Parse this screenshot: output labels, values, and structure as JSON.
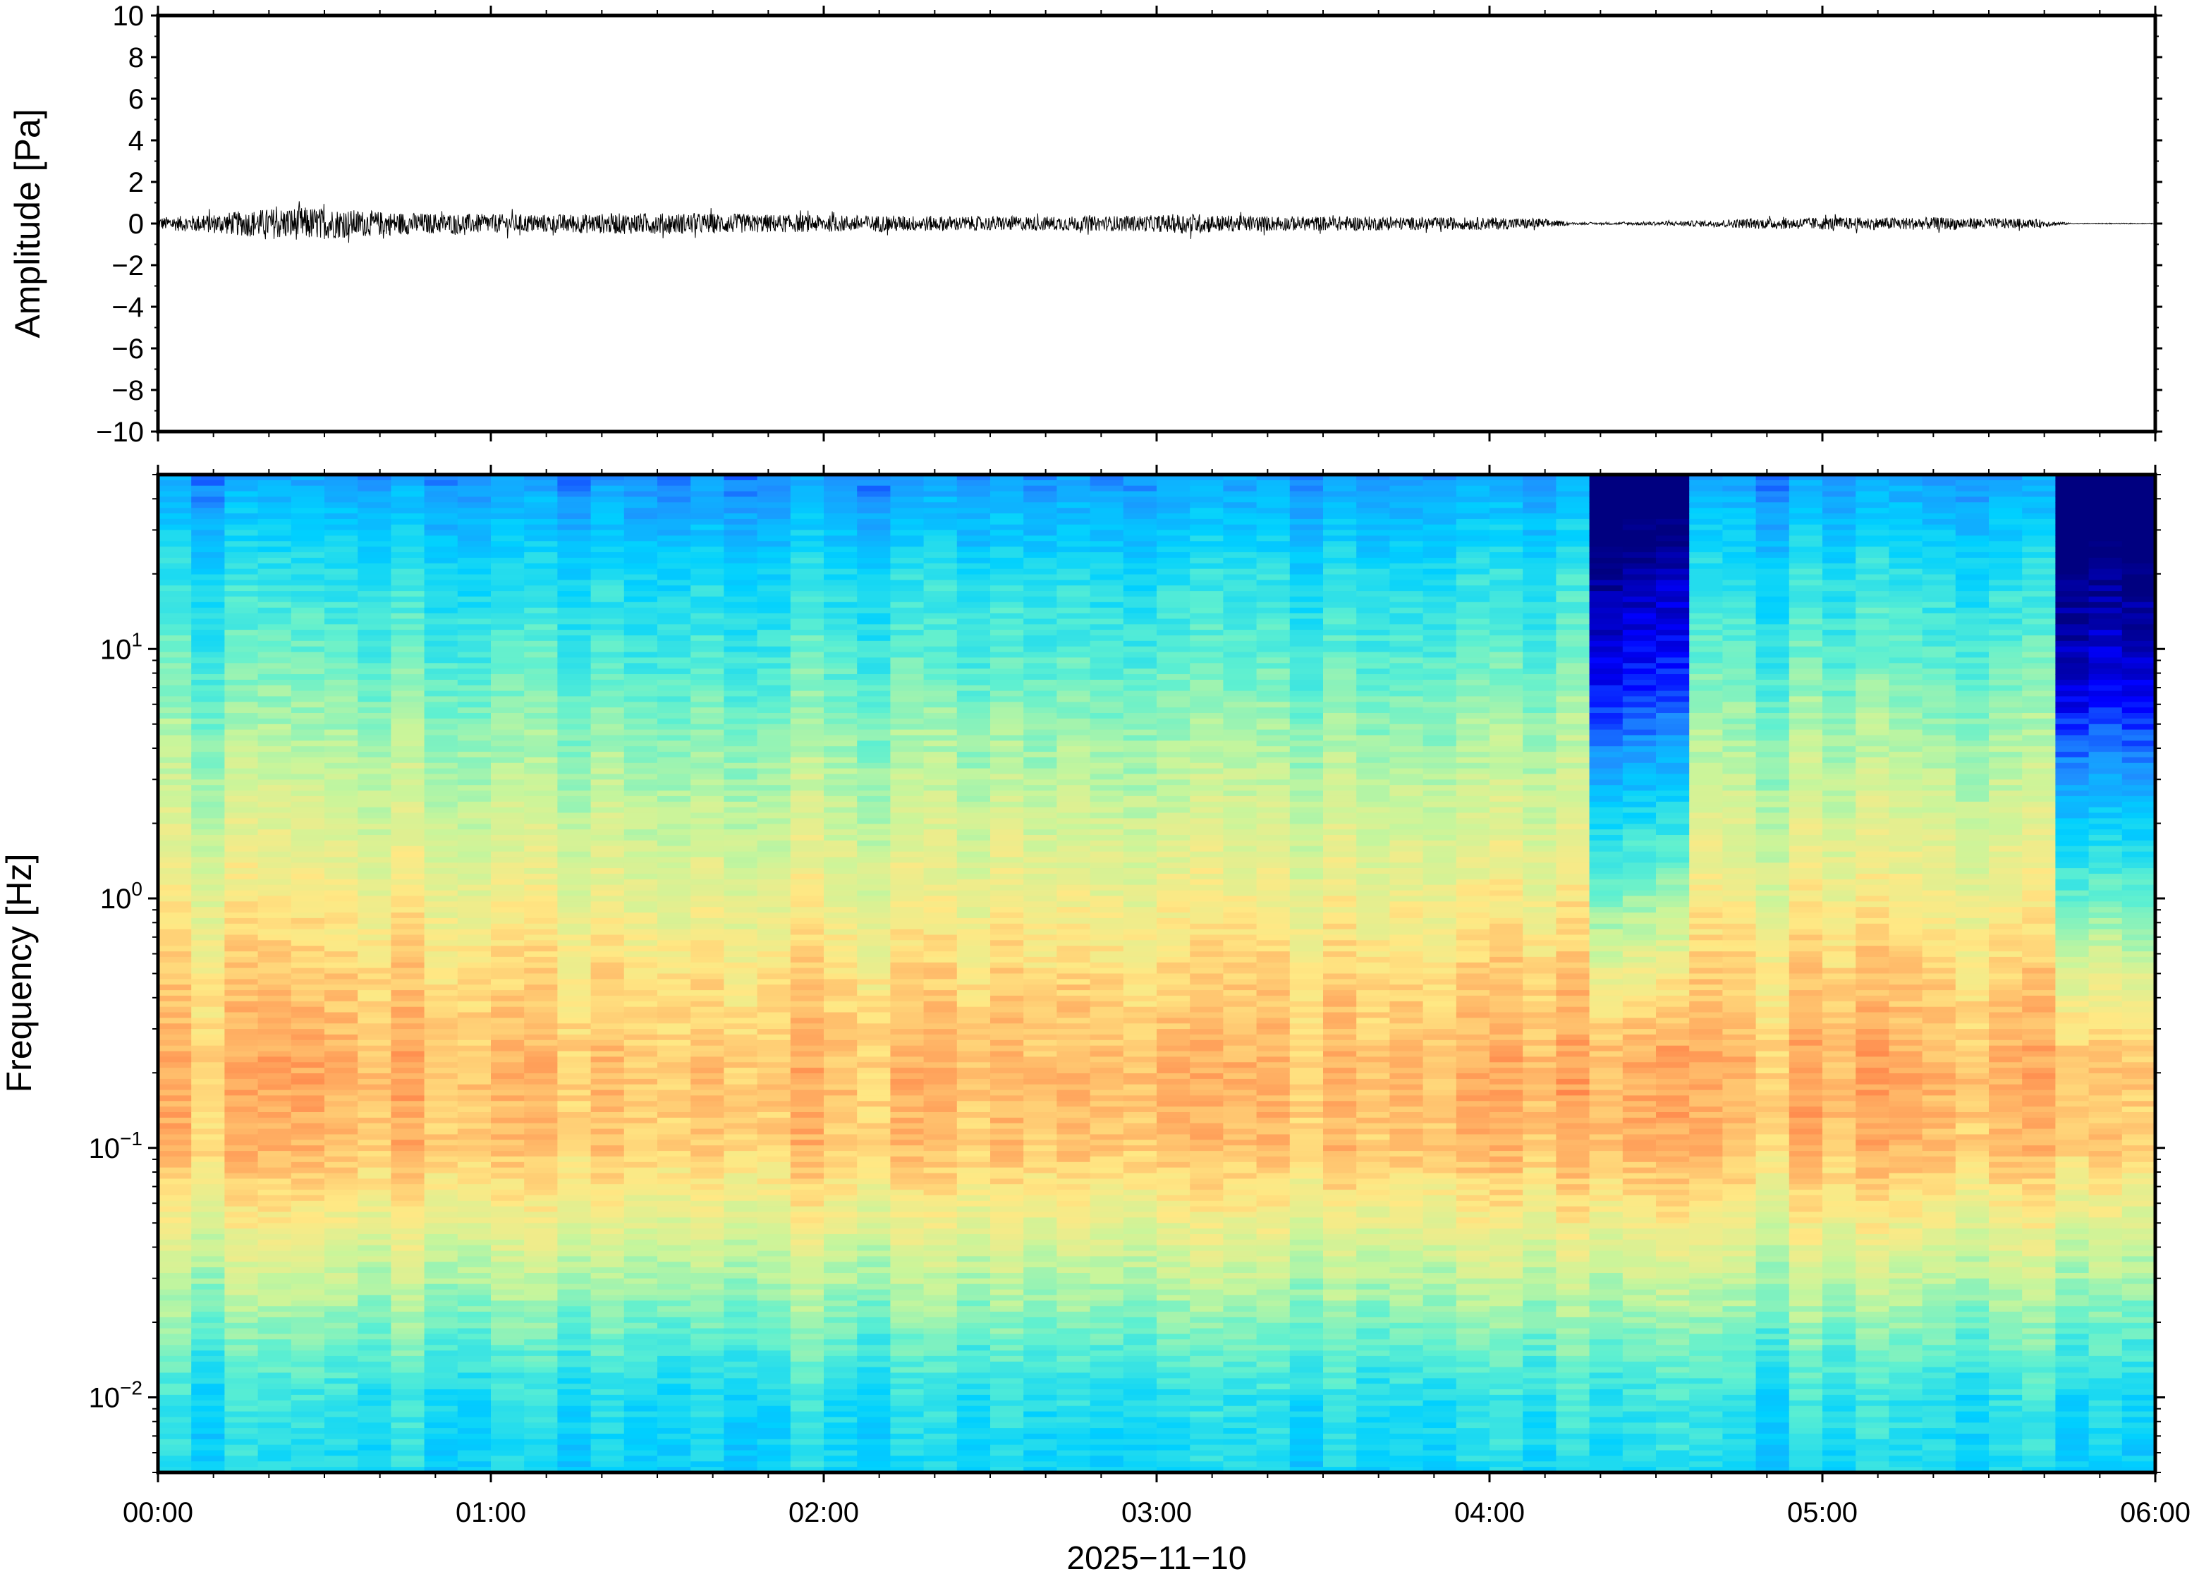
{
  "chart_data": [
    {
      "type": "line",
      "panel": "waveform",
      "ylabel": "Amplitude [Pa]",
      "ylim": [
        -10,
        10
      ],
      "yticks": [
        10,
        8,
        6,
        4,
        2,
        0,
        -2,
        -4,
        -6,
        -8,
        -10
      ],
      "ytick_labels": [
        "10",
        "8",
        "6",
        "4",
        "2",
        "0",
        "−2",
        "−4",
        "−6",
        "−8",
        "−10"
      ],
      "xlim_hours": [
        0,
        6
      ],
      "series": [
        {
          "color": "#000000",
          "envelope": {
            "x_hours": [
              0.0,
              0.15,
              0.25,
              0.35,
              0.45,
              0.55,
              0.65,
              0.8,
              1.0,
              1.2,
              1.4,
              1.6,
              1.8,
              2.0,
              2.2,
              2.4,
              2.6,
              2.8,
              3.0,
              3.1,
              3.2,
              3.4,
              3.6,
              3.8,
              4.0,
              4.15,
              4.25,
              4.35,
              4.5,
              4.65,
              4.8,
              5.0,
              5.2,
              5.4,
              5.55,
              5.65,
              5.75,
              6.0
            ],
            "amplitude_pa": [
              0.3,
              0.45,
              0.6,
              0.75,
              0.8,
              0.7,
              0.6,
              0.5,
              0.45,
              0.45,
              0.5,
              0.5,
              0.45,
              0.4,
              0.4,
              0.35,
              0.35,
              0.35,
              0.4,
              0.5,
              0.4,
              0.35,
              0.35,
              0.3,
              0.3,
              0.25,
              0.05,
              0.05,
              0.1,
              0.15,
              0.25,
              0.3,
              0.3,
              0.3,
              0.25,
              0.2,
              0.02,
              0.02
            ]
          }
        }
      ]
    },
    {
      "type": "heatmap",
      "panel": "spectrogram",
      "ylabel": "Frequency [Hz]",
      "yscale": "log",
      "ylim_hz": [
        0.005,
        50
      ],
      "yticks": [
        {
          "base": "10",
          "exp": "1",
          "value": 10
        },
        {
          "base": "10",
          "exp": "0",
          "value": 1
        },
        {
          "base": "10",
          "exp": "−1",
          "value": 0.1
        },
        {
          "base": "10",
          "exp": "−2",
          "value": 0.01
        }
      ],
      "xlabel": "2025−11−10",
      "xlim_hours": [
        0,
        6
      ],
      "xticks": [
        "00:00",
        "01:00",
        "02:00",
        "03:00",
        "04:00",
        "05:00",
        "06:00"
      ],
      "colormap": [
        "#000080",
        "#0000ff",
        "#1e90ff",
        "#00d0ff",
        "#5ff0d0",
        "#c8f59b",
        "#ffe884",
        "#ffa05a",
        "#ff4020",
        "#a00000"
      ],
      "columns": 60,
      "quiet_intervals_hours": [
        [
          4.3,
          4.55
        ],
        [
          5.72,
          6.0
        ]
      ],
      "levels": {
        "f_hz": [
          0.005,
          0.01,
          0.02,
          0.05,
          0.1,
          0.2,
          0.5,
          1,
          2,
          5,
          10,
          20,
          50
        ],
        "relative_power": [
          0.35,
          0.38,
          0.48,
          0.62,
          0.72,
          0.74,
          0.69,
          0.63,
          0.58,
          0.5,
          0.43,
          0.37,
          0.24
        ]
      }
    }
  ]
}
